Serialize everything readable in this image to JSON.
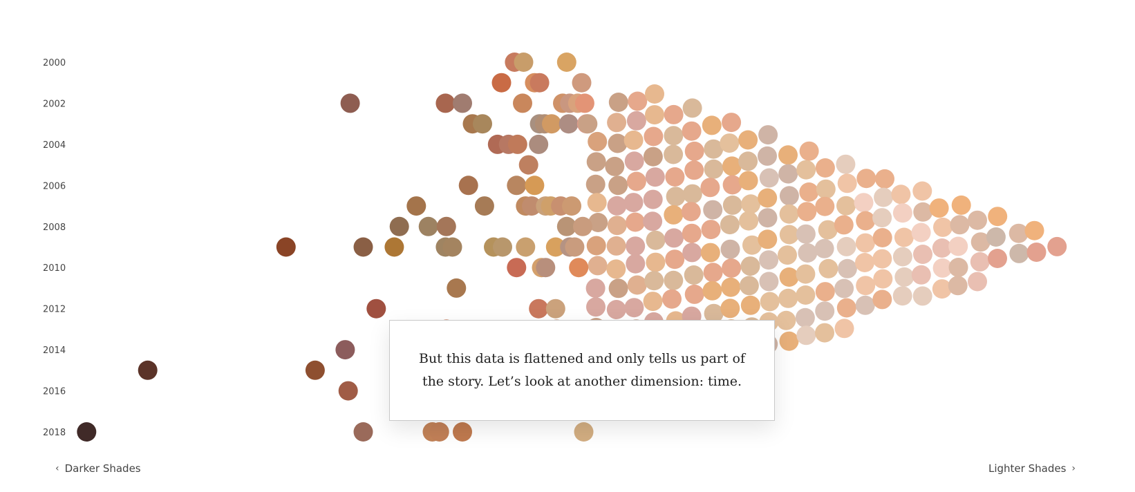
{
  "chart_data": {
    "type": "scatter",
    "title": "",
    "xlabel": "",
    "ylabel": "",
    "x_direction": "darker-to-lighter",
    "x_range": [
      0,
      100
    ],
    "ylim": [
      2000,
      2018
    ],
    "y_ticks": [
      "2000",
      "2002",
      "2004",
      "2006",
      "2008",
      "2010",
      "2012",
      "2014",
      "2016",
      "2018"
    ],
    "grid": false,
    "points": [
      {
        "x": 0.5,
        "y": 2018,
        "color": "#402a28"
      },
      {
        "x": 6.6,
        "y": 2015,
        "color": "#5b3328"
      },
      {
        "x": 20.4,
        "y": 2009,
        "color": "#8a4426"
      },
      {
        "x": 23.3,
        "y": 2015,
        "color": "#8e4f30"
      },
      {
        "x": 26.8,
        "y": 2002,
        "color": "#8e5d51"
      },
      {
        "x": 26.3,
        "y": 2014,
        "color": "#8c5c5c"
      },
      {
        "x": 26.6,
        "y": 2016,
        "color": "#a05c46"
      },
      {
        "x": 28.1,
        "y": 2009,
        "color": "#8a5f45"
      },
      {
        "x": 28.1,
        "y": 2018,
        "color": "#9a6a5a"
      },
      {
        "x": 29.4,
        "y": 2012,
        "color": "#a05040"
      },
      {
        "x": 31.2,
        "y": 2009,
        "color": "#ad7735"
      },
      {
        "x": 31.7,
        "y": 2008,
        "color": "#8f6d51"
      },
      {
        "x": 33.4,
        "y": 2007,
        "color": "#a4744b"
      },
      {
        "x": 34.6,
        "y": 2008,
        "color": "#9d8262"
      },
      {
        "x": 35.0,
        "y": 2018,
        "color": "#c38358"
      },
      {
        "x": 35.7,
        "y": 2018,
        "color": "#c28058"
      },
      {
        "x": 36.3,
        "y": 2002,
        "color": "#a8664f"
      },
      {
        "x": 36.4,
        "y": 2008,
        "color": "#a47659"
      },
      {
        "x": 36.3,
        "y": 2009,
        "color": "#9f8462"
      },
      {
        "x": 37.0,
        "y": 2009,
        "color": "#a48460"
      },
      {
        "x": 36.4,
        "y": 2013,
        "color": "#c4704a"
      },
      {
        "x": 37.4,
        "y": 2011,
        "color": "#a8784f"
      },
      {
        "x": 38.0,
        "y": 2002,
        "color": "#a07c70"
      },
      {
        "x": 38.0,
        "y": 2018,
        "color": "#c07a4f"
      },
      {
        "x": 38.6,
        "y": 2006,
        "color": "#a8724f"
      },
      {
        "x": 39.0,
        "y": 2003,
        "color": "#a8784e"
      },
      {
        "x": 40.0,
        "y": 2003,
        "color": "#a8875c"
      },
      {
        "x": 40.2,
        "y": 2007,
        "color": "#a67b56"
      },
      {
        "x": 41.1,
        "y": 2009,
        "color": "#b5925c"
      },
      {
        "x": 41.5,
        "y": 2004,
        "color": "#b06a55"
      },
      {
        "x": 41.9,
        "y": 2001,
        "color": "#c96b45"
      },
      {
        "x": 42.0,
        "y": 2009,
        "color": "#b8976c"
      },
      {
        "x": 42.6,
        "y": 2004,
        "color": "#b77863"
      },
      {
        "x": 43.2,
        "y": 2000,
        "color": "#c77b5f"
      },
      {
        "x": 43.4,
        "y": 2010,
        "color": "#c86b55"
      },
      {
        "x": 43.5,
        "y": 2004,
        "color": "#c07a5a"
      },
      {
        "x": 43.4,
        "y": 2006,
        "color": "#b88660"
      },
      {
        "x": 44.0,
        "y": 2002,
        "color": "#c9875c"
      },
      {
        "x": 44.1,
        "y": 2000,
        "color": "#c89d6a"
      },
      {
        "x": 44.3,
        "y": 2009,
        "color": "#c9a06f"
      },
      {
        "x": 44.3,
        "y": 2007,
        "color": "#c08a60"
      },
      {
        "x": 44.6,
        "y": 2005,
        "color": "#be8060"
      },
      {
        "x": 44.9,
        "y": 2007,
        "color": "#c08c6e"
      },
      {
        "x": 45.2,
        "y": 2001,
        "color": "#d68e5f"
      },
      {
        "x": 45.2,
        "y": 2006,
        "color": "#d69a55"
      },
      {
        "x": 45.7,
        "y": 2001,
        "color": "#c97a5e"
      },
      {
        "x": 45.6,
        "y": 2012,
        "color": "#c9785d"
      },
      {
        "x": 45.6,
        "y": 2004,
        "color": "#ab8c7e"
      },
      {
        "x": 45.7,
        "y": 2003,
        "color": "#a89080"
      },
      {
        "x": 45.9,
        "y": 2010,
        "color": "#d4a06b"
      },
      {
        "x": 46.2,
        "y": 2003,
        "color": "#b08e75"
      },
      {
        "x": 46.3,
        "y": 2010,
        "color": "#b88f7c"
      },
      {
        "x": 46.3,
        "y": 2007,
        "color": "#c9a17a"
      },
      {
        "x": 46.8,
        "y": 2007,
        "color": "#cfa06a"
      },
      {
        "x": 46.9,
        "y": 2003,
        "color": "#d19a63"
      },
      {
        "x": 47.3,
        "y": 2009,
        "color": "#d8a15e"
      },
      {
        "x": 47.3,
        "y": 2012,
        "color": "#cba27c"
      },
      {
        "x": 47.4,
        "y": 2013,
        "color": "#d49572"
      },
      {
        "x": 47.8,
        "y": 2007,
        "color": "#c89070"
      },
      {
        "x": 48.0,
        "y": 2002,
        "color": "#cf9268"
      },
      {
        "x": 48.4,
        "y": 2000,
        "color": "#d9a463"
      },
      {
        "x": 48.4,
        "y": 2008,
        "color": "#b99476"
      },
      {
        "x": 48.6,
        "y": 2003,
        "color": "#ad8d83"
      },
      {
        "x": 48.7,
        "y": 2002,
        "color": "#c99780"
      },
      {
        "x": 48.7,
        "y": 2009,
        "color": "#b59383"
      },
      {
        "x": 48.9,
        "y": 2007,
        "color": "#cc9a72"
      },
      {
        "x": 49.2,
        "y": 2009,
        "color": "#c99c7e"
      },
      {
        "x": 49.5,
        "y": 2002,
        "color": "#d9a27c"
      },
      {
        "x": 49.6,
        "y": 2010,
        "color": "#e08a5a"
      },
      {
        "x": 49.9,
        "y": 2001,
        "color": "#cf9a7e"
      },
      {
        "x": 50.0,
        "y": 2008,
        "color": "#c99c7e"
      },
      {
        "x": 50.1,
        "y": 2018,
        "color": "#d3ae82"
      },
      {
        "x": 50.2,
        "y": 2002,
        "color": "#e39476"
      },
      {
        "x": 50.4,
        "y": 2003,
        "color": "#dc9b8b"
      },
      {
        "x": 50.5,
        "y": 2003,
        "color": "#c9a186"
      }
    ],
    "cluster": {
      "x_from": 50.5,
      "x_to": 100,
      "y_from": 2000,
      "y_to": 2018,
      "shape": "arrowhead",
      "palette": [
        "#d9a27c",
        "#e0b090",
        "#c9a186",
        "#e7b88f",
        "#d8a8a0",
        "#e6a88c",
        "#d9b99a",
        "#e8b07a",
        "#cfb4a6",
        "#e4c09c",
        "#d8c1b5",
        "#eab08c",
        "#e5cdbd",
        "#f0c4a6",
        "#f3d0c2",
        "#e9bfb2",
        "#dcb9a4",
        "#f0b27c",
        "#e3a18f",
        "#cdb8aa",
        "#e8c2a4",
        "#f4d8c8"
      ]
    }
  },
  "callout": {
    "text": "But this data is flattened and only tells us part of the story. Let’s look at another dimension: time."
  },
  "nav": {
    "left_label": "Darker Shades",
    "right_label": "Lighter Shades",
    "left_icon": "chevron-left-icon",
    "right_icon": "chevron-right-icon"
  }
}
